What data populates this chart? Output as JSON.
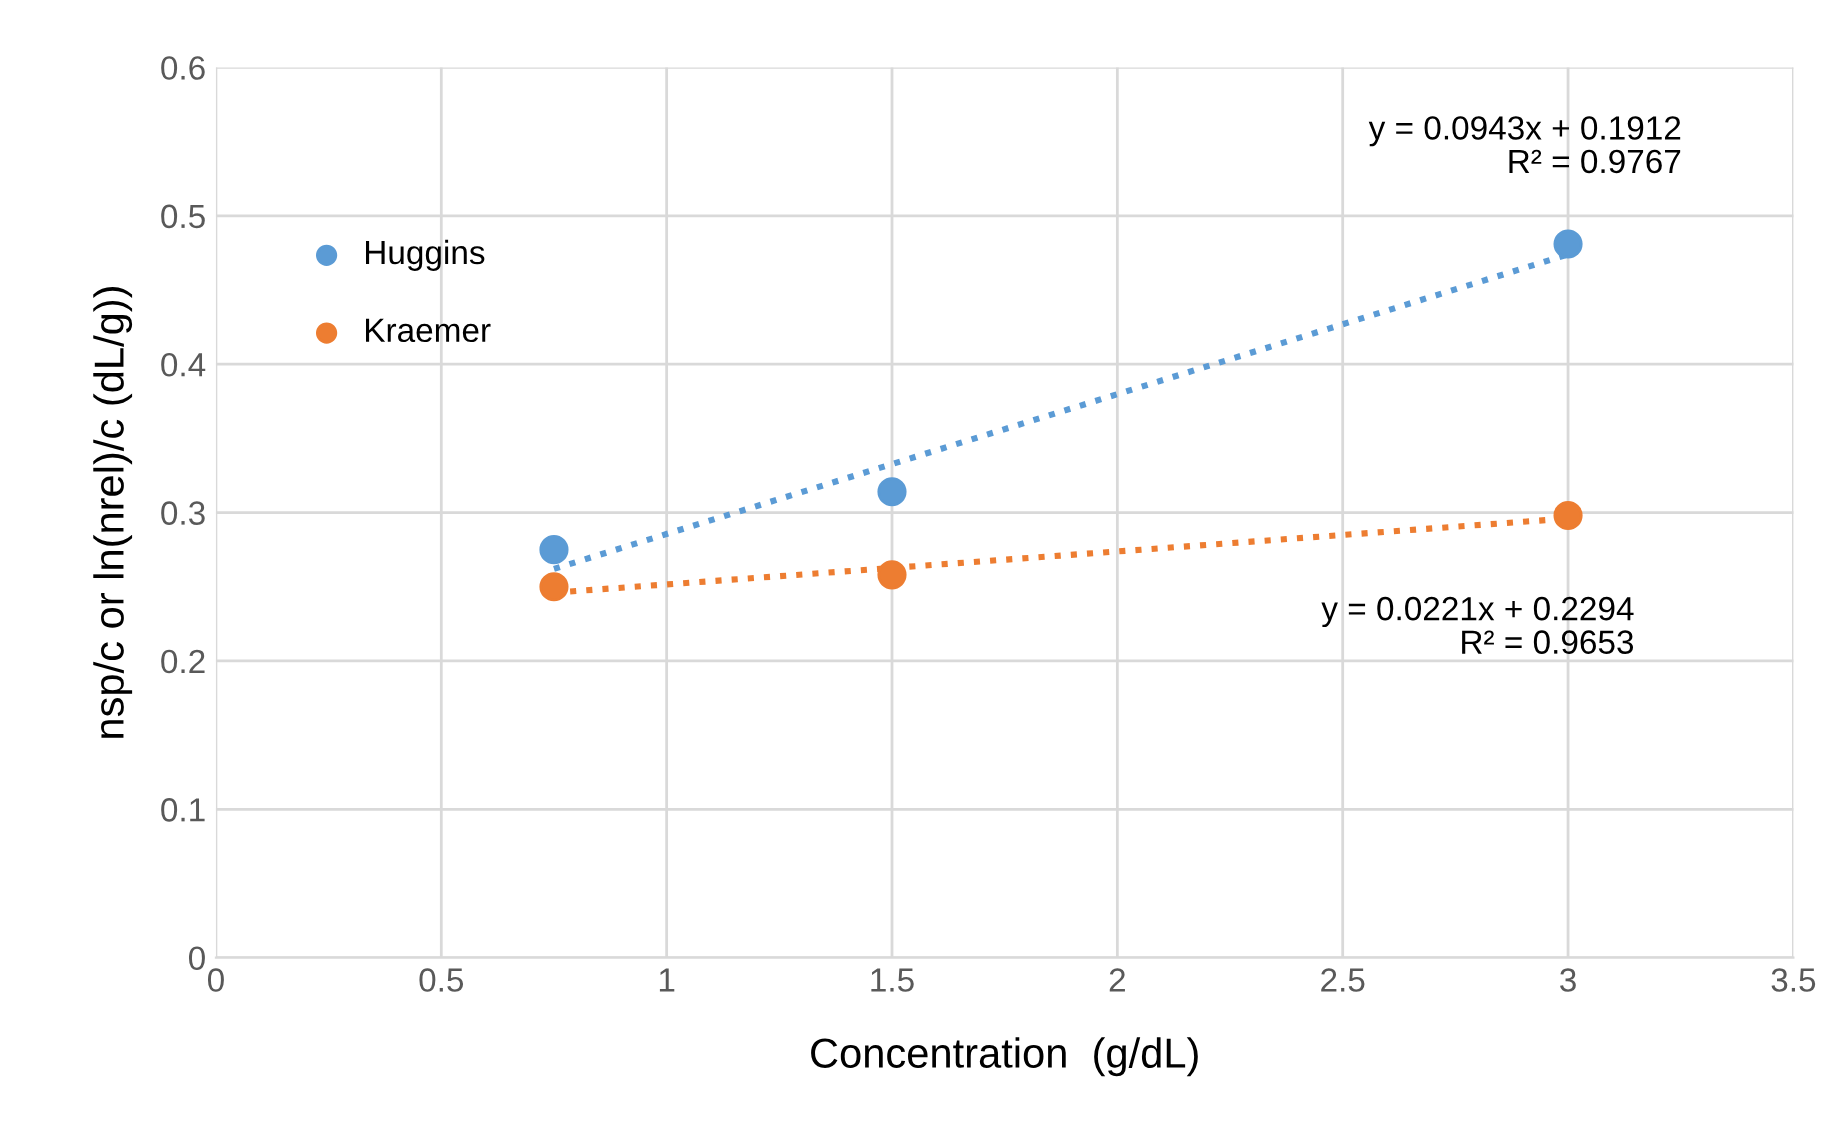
{
  "chart_data": {
    "type": "scatter",
    "xlabel": "Concentration  (g/dL)",
    "ylabel": "nsp/c or ln(nrel)/c (dL/g))",
    "xlim": [
      0,
      3.5
    ],
    "xticks": [
      0,
      0.5,
      1,
      1.5,
      2,
      2.5,
      3,
      3.5
    ],
    "ylim": [
      0,
      0.6
    ],
    "yticks": [
      0,
      0.1,
      0.2,
      0.3,
      0.4,
      0.5,
      0.6
    ],
    "grid": true,
    "legend": "top left",
    "marker": "circle",
    "series": [
      {
        "name": "Huggins",
        "color": "#5b9bd5",
        "x": [
          0.75,
          1.5,
          3
        ],
        "values": [
          0.275,
          0.314,
          0.481
        ]
      },
      {
        "name": "Kraemer",
        "color": "#ed7d31",
        "x": [
          0.75,
          1.5,
          3
        ],
        "values": [
          0.25,
          0.258,
          0.298
        ]
      },
      {
        "type": "line",
        "marker": "none",
        "line_style": "dotted",
        "color": "#5b9bd5",
        "x": [
          0.75,
          3
        ],
        "values": [
          0.262,
          0.474
        ]
      },
      {
        "type": "line",
        "marker": "none",
        "line_style": "dotted",
        "color": "#ed7d31",
        "x": [
          0.75,
          3
        ],
        "values": [
          0.246,
          0.296
        ]
      }
    ],
    "annotations": [
      "y = 0.0943x + 0.1912\nR² = 0.9767",
      "y = 0.0221x + 0.2294\nR² = 0.9653"
    ]
  }
}
